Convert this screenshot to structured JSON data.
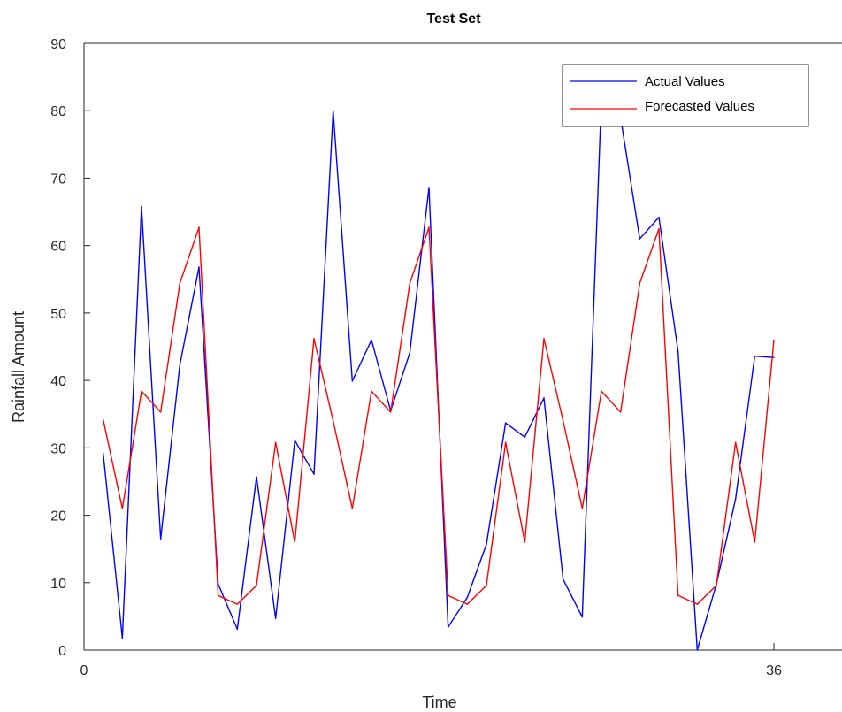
{
  "chart_data": {
    "type": "line",
    "title": "Test Set",
    "xlabel": "Time",
    "ylabel": "Rainfall Amount",
    "xlim": [
      0,
      36
    ],
    "ylim": [
      0,
      90
    ],
    "xticks": [
      0,
      36
    ],
    "yticks": [
      0,
      10,
      20,
      30,
      40,
      50,
      60,
      70,
      80,
      90
    ],
    "grid": false,
    "legend_position": "top-right",
    "x": [
      1,
      2,
      3,
      4,
      5,
      6,
      7,
      8,
      9,
      10,
      11,
      12,
      13,
      14,
      15,
      16,
      17,
      18,
      19,
      20,
      21,
      22,
      23,
      24,
      25,
      26,
      27,
      28,
      29,
      30,
      31,
      32,
      33,
      34,
      35,
      36
    ],
    "series": [
      {
        "name": "Actual Values",
        "color": "#0000ff",
        "values": [
          29.2,
          1.8,
          65.8,
          16.5,
          42.3,
          56.8,
          9.8,
          3.1,
          25.7,
          4.7,
          31.1,
          26.1,
          80.0,
          39.9,
          46.0,
          35.5,
          44.1,
          68.6,
          3.4,
          7.8,
          15.7,
          33.7,
          31.6,
          37.4,
          10.5,
          4.9,
          82.0,
          79.0,
          61.0,
          64.2,
          44.3,
          0.0,
          9.8,
          22.4,
          43.6,
          43.4
        ]
      },
      {
        "name": "Forecasted Values",
        "color": "#ff0000",
        "values": [
          34.2,
          21.0,
          38.4,
          35.3,
          54.4,
          62.7,
          8.1,
          6.8,
          9.6,
          30.8,
          16.0,
          46.2,
          34.0,
          21.0,
          38.4,
          35.3,
          54.4,
          62.7,
          8.1,
          6.8,
          9.6,
          30.8,
          16.0,
          46.2,
          34.0,
          21.0,
          38.4,
          35.3,
          54.4,
          62.5,
          8.1,
          6.8,
          9.6,
          30.8,
          16.0,
          46.0
        ]
      }
    ]
  }
}
